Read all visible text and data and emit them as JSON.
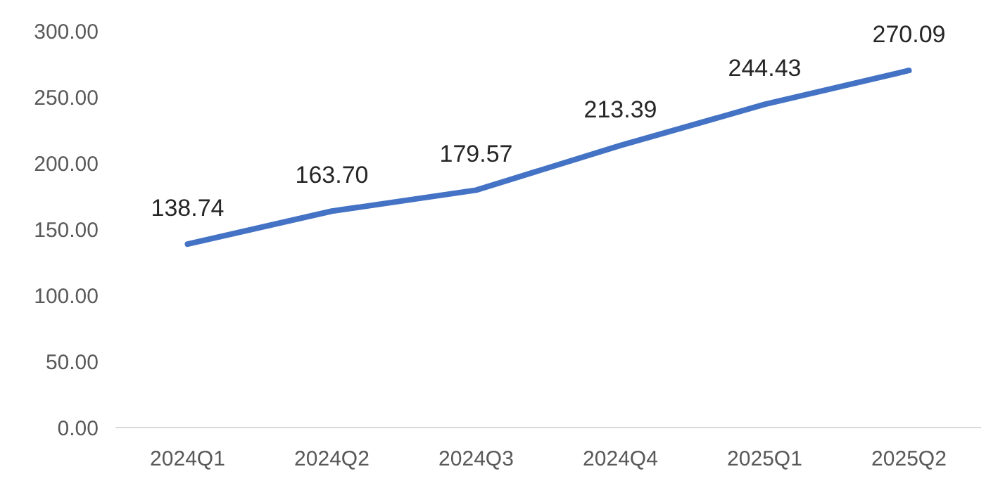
{
  "chart_data": {
    "type": "line",
    "categories": [
      "2024Q1",
      "2024Q2",
      "2024Q3",
      "2024Q4",
      "2025Q1",
      "2025Q2"
    ],
    "series": [
      {
        "color": "#4472c4",
        "values": [
          138.74,
          163.7,
          179.57,
          213.39,
          244.43,
          270.09
        ]
      }
    ],
    "value_labels": [
      "138.74",
      "163.70",
      "179.57",
      "213.39",
      "244.43",
      "270.09"
    ],
    "ylim": [
      0,
      300
    ],
    "yticks": [
      {
        "value": 0,
        "label": "0.00"
      },
      {
        "value": 50,
        "label": "50.00"
      },
      {
        "value": 100,
        "label": "100.00"
      },
      {
        "value": 150,
        "label": "150.00"
      },
      {
        "value": 200,
        "label": "200.00"
      },
      {
        "value": 250,
        "label": "250.00"
      },
      {
        "value": 300,
        "label": "300.00"
      }
    ],
    "grid": false,
    "marker": "none",
    "line_style": "solid"
  }
}
